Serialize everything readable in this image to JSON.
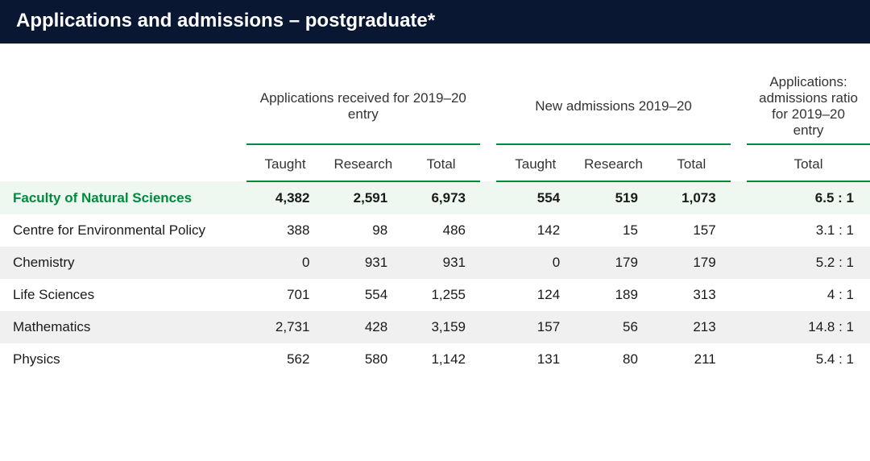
{
  "title": "Applications and admissions – postgraduate*",
  "headers": {
    "group_apps": "Applications received for  2019–20 entry",
    "group_adm": "New admissions 2019–20",
    "group_ratio": "Applications: admissions ratio for 2019–20 entry",
    "sub_taught": "Taught",
    "sub_research": "Research",
    "sub_total": "Total"
  },
  "rows": [
    {
      "label": "Faculty of Natural Sciences",
      "apps_taught": "4,382",
      "apps_research": "2,591",
      "apps_total": "6,973",
      "adm_taught": "554",
      "adm_research": "519",
      "adm_total": "1,073",
      "ratio": "6.5 : 1",
      "type": "faculty"
    },
    {
      "label": "Centre for Environmental Policy",
      "apps_taught": "388",
      "apps_research": "98",
      "apps_total": "486",
      "adm_taught": "142",
      "adm_research": "15",
      "adm_total": "157",
      "ratio": "3.1 : 1",
      "type": "plain"
    },
    {
      "label": "Chemistry",
      "apps_taught": "0",
      "apps_research": "931",
      "apps_total": "931",
      "adm_taught": "0",
      "adm_research": "179",
      "adm_total": "179",
      "ratio": "5.2 : 1",
      "type": "alt"
    },
    {
      "label": "Life Sciences",
      "apps_taught": "701",
      "apps_research": "554",
      "apps_total": "1,255",
      "adm_taught": "124",
      "adm_research": "189",
      "adm_total": "313",
      "ratio": "4 : 1",
      "type": "plain"
    },
    {
      "label": "Mathematics",
      "apps_taught": "2,731",
      "apps_research": "428",
      "apps_total": "3,159",
      "adm_taught": "157",
      "adm_research": "56",
      "adm_total": "213",
      "ratio": "14.8 : 1",
      "type": "alt"
    },
    {
      "label": "Physics",
      "apps_taught": "562",
      "apps_research": "580",
      "apps_total": "1,142",
      "adm_taught": "131",
      "adm_research": "80",
      "adm_total": "211",
      "ratio": "5.4 : 1",
      "type": "plain"
    }
  ],
  "colors": {
    "title_bg": "#0a1733",
    "title_fg": "#ffffff",
    "accent_green": "#008a3e",
    "faculty_bg": "#eef8f0",
    "alt_bg": "#f0f0f0",
    "text": "#1a1a1a"
  },
  "table_type": "table"
}
